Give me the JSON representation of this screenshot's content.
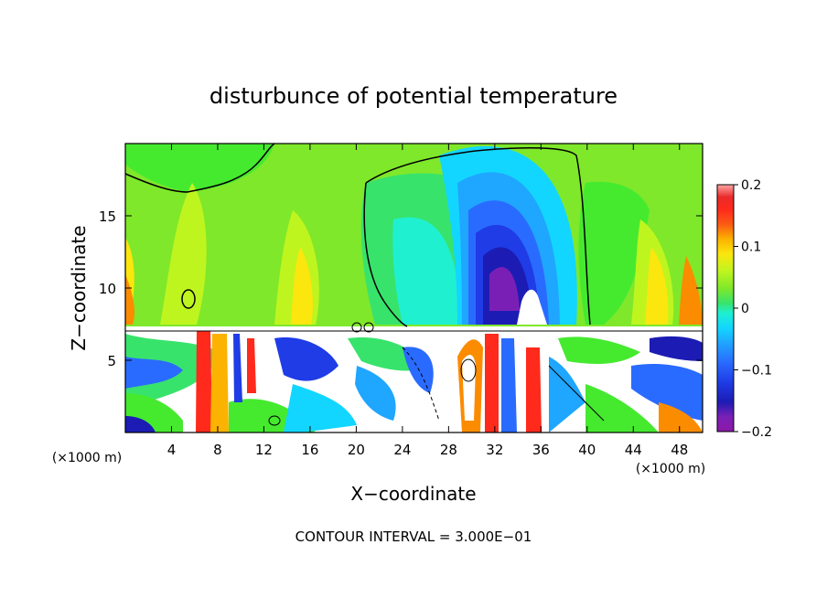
{
  "chart_data": {
    "type": "heatmap",
    "title": "disturbunce of potential temperature",
    "xlabel": "X−coordinate",
    "ylabel": "Z−coordinate",
    "x_unit": "(×1000 m)",
    "y_unit": "(×1000 m)",
    "xlim": [
      0,
      50
    ],
    "ylim": [
      0,
      20
    ],
    "x_ticks": [
      4,
      8,
      12,
      16,
      20,
      24,
      28,
      32,
      36,
      40,
      44,
      48
    ],
    "y_ticks": [
      5,
      10,
      15
    ],
    "colorbar": {
      "range": [
        -0.2,
        0.2
      ],
      "tick_values": [
        0.2,
        0.1,
        0,
        -0.1,
        -0.2
      ],
      "tick_labels": [
        "0.2",
        "0.1",
        "0",
        "−0.1",
        "−0.2"
      ],
      "colors": [
        "#8c19a8",
        "#7a1fb6",
        "#1c1cb4",
        "#1f3ce6",
        "#2a6bff",
        "#1fa6ff",
        "#12d6ff",
        "#1ff0d0",
        "#33e7a8",
        "#38e36c",
        "#45ea2f",
        "#7fe82a",
        "#bff51f",
        "#fbe60e",
        "#fbb200",
        "#fb8c00",
        "#fb5a14",
        "#ff2a1c",
        "#ea2a2a",
        "#ffa6a6"
      ]
    },
    "contour_interval": "CONTOUR INTERVAL = 3.000E−01"
  }
}
